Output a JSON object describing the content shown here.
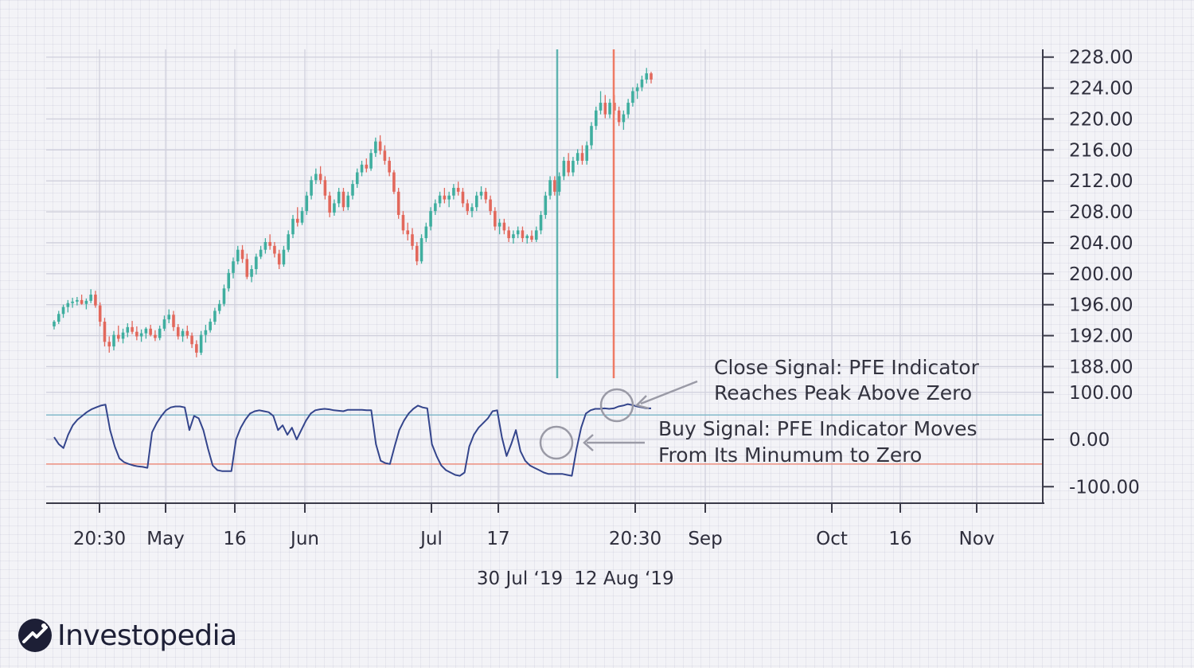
{
  "brand": {
    "name": "Investopedia"
  },
  "colors": {
    "up": "#3fae9f",
    "down": "#e2685c",
    "pfe_line": "#34458c",
    "buy_line": "#5fb3b0",
    "close_line": "#ee7a64",
    "upper_threshold": "#79b4c6",
    "lower_threshold": "#f08a76",
    "annotation": "#9a9aa6"
  },
  "chart_data": {
    "type": "candlestick",
    "price_axis": {
      "ticks": [
        "228.00",
        "224.00",
        "220.00",
        "216.00",
        "212.00",
        "208.00",
        "204.00",
        "200.00",
        "196.00",
        "192.00",
        "188.00"
      ],
      "range": [
        186.5,
        229
      ]
    },
    "indicator_axis": {
      "ticks": [
        "100.00",
        "0.00",
        "-100.00"
      ],
      "range": [
        -135,
        130
      ],
      "upper_threshold": 52,
      "lower_threshold": -52
    },
    "x_axis": {
      "tick_labels": [
        "20:30",
        "May",
        "16",
        "Jun",
        "Jul",
        "17",
        "20:30",
        "Sep",
        "Oct",
        "16",
        "Nov"
      ],
      "secondary_labels": [
        "30 Jul ‘19",
        "12 Aug ‘19"
      ]
    },
    "signals": {
      "buy_date": "30 Jul ‘19",
      "close_date": "12 Aug ‘19"
    },
    "annotations": {
      "close_signal": [
        "Close Signal: PFE Indicator",
        "Reaches Peak Above Zero"
      ],
      "buy_signal": [
        "Buy Signal: PFE Indicator Moves",
        "From Its Minumum to Zero"
      ]
    },
    "candles": [
      [
        193.2,
        194.0,
        192.8,
        193.8
      ],
      [
        193.8,
        195.2,
        193.5,
        194.8
      ],
      [
        194.8,
        196.0,
        194.3,
        195.7
      ],
      [
        195.7,
        196.6,
        195.0,
        196.2
      ],
      [
        196.2,
        196.9,
        195.6,
        196.4
      ],
      [
        196.4,
        197.0,
        195.9,
        196.6
      ],
      [
        196.6,
        197.3,
        196.0,
        196.1
      ],
      [
        196.1,
        196.8,
        195.4,
        196.5
      ],
      [
        196.5,
        198.0,
        196.2,
        197.3
      ],
      [
        197.3,
        197.8,
        195.6,
        195.9
      ],
      [
        195.9,
        196.3,
        193.2,
        193.8
      ],
      [
        193.8,
        194.3,
        190.6,
        191.2
      ],
      [
        191.2,
        191.9,
        189.8,
        190.6
      ],
      [
        190.6,
        192.6,
        190.1,
        192.1
      ],
      [
        192.1,
        193.3,
        191.2,
        191.6
      ],
      [
        191.6,
        192.9,
        191.0,
        192.4
      ],
      [
        192.4,
        193.6,
        191.8,
        193.1
      ],
      [
        193.1,
        193.9,
        192.2,
        192.5
      ],
      [
        192.5,
        193.2,
        191.4,
        191.9
      ],
      [
        191.9,
        192.8,
        191.2,
        192.3
      ],
      [
        192.3,
        193.1,
        191.6,
        192.9
      ],
      [
        192.9,
        193.4,
        191.9,
        192.1
      ],
      [
        192.1,
        192.7,
        191.3,
        191.7
      ],
      [
        191.7,
        193.3,
        191.4,
        192.9
      ],
      [
        192.9,
        194.6,
        192.6,
        194.1
      ],
      [
        194.1,
        195.4,
        193.6,
        194.7
      ],
      [
        194.7,
        195.2,
        192.6,
        193.1
      ],
      [
        193.1,
        193.5,
        191.5,
        191.9
      ],
      [
        191.9,
        192.9,
        191.2,
        192.6
      ],
      [
        192.6,
        193.3,
        191.6,
        192.0
      ],
      [
        192.0,
        192.4,
        190.4,
        190.9
      ],
      [
        190.9,
        191.4,
        189.2,
        189.8
      ],
      [
        189.8,
        192.6,
        189.5,
        192.1
      ],
      [
        192.1,
        193.4,
        191.1,
        192.7
      ],
      [
        192.7,
        194.2,
        192.4,
        193.8
      ],
      [
        193.8,
        195.6,
        193.4,
        195.2
      ],
      [
        195.2,
        196.6,
        194.8,
        196.1
      ],
      [
        196.1,
        198.6,
        195.8,
        198.1
      ],
      [
        198.1,
        200.6,
        197.7,
        200.1
      ],
      [
        200.1,
        202.1,
        199.4,
        201.6
      ],
      [
        201.6,
        203.6,
        201.2,
        203.1
      ],
      [
        203.1,
        203.7,
        201.4,
        201.9
      ],
      [
        201.9,
        202.6,
        199.3,
        199.6
      ],
      [
        199.6,
        201.1,
        198.9,
        200.6
      ],
      [
        200.6,
        202.6,
        199.9,
        202.2
      ],
      [
        202.2,
        203.6,
        201.9,
        203.1
      ],
      [
        203.1,
        204.6,
        202.6,
        204.1
      ],
      [
        204.1,
        205.1,
        203.1,
        203.6
      ],
      [
        203.6,
        204.1,
        202.1,
        202.6
      ],
      [
        202.6,
        203.1,
        200.6,
        201.2
      ],
      [
        201.2,
        203.6,
        200.9,
        203.1
      ],
      [
        203.1,
        205.6,
        202.8,
        205.1
      ],
      [
        205.1,
        207.6,
        204.6,
        207.1
      ],
      [
        207.1,
        208.6,
        206.1,
        206.6
      ],
      [
        206.6,
        208.6,
        206.3,
        208.1
      ],
      [
        208.1,
        210.6,
        207.6,
        210.1
      ],
      [
        210.1,
        212.6,
        209.6,
        212.1
      ],
      [
        212.1,
        213.6,
        211.6,
        212.9
      ],
      [
        212.9,
        213.9,
        211.6,
        212.1
      ],
      [
        212.1,
        212.6,
        209.6,
        210.1
      ],
      [
        210.1,
        210.6,
        207.3,
        207.9
      ],
      [
        207.9,
        209.6,
        207.5,
        209.1
      ],
      [
        209.1,
        211.1,
        208.6,
        210.6
      ],
      [
        210.6,
        211.1,
        208.1,
        208.6
      ],
      [
        208.6,
        210.6,
        208.2,
        210.1
      ],
      [
        210.1,
        212.1,
        209.6,
        211.6
      ],
      [
        211.6,
        213.6,
        211.1,
        213.1
      ],
      [
        213.1,
        214.6,
        212.6,
        214.1
      ],
      [
        214.1,
        214.9,
        213.1,
        213.6
      ],
      [
        213.6,
        216.1,
        213.3,
        215.6
      ],
      [
        215.6,
        217.6,
        215.1,
        217.1
      ],
      [
        217.1,
        217.9,
        215.4,
        215.9
      ],
      [
        215.9,
        216.6,
        214.1,
        214.6
      ],
      [
        214.6,
        215.1,
        212.6,
        213.1
      ],
      [
        213.1,
        213.4,
        210.3,
        210.6
      ],
      [
        210.6,
        211.1,
        207.1,
        207.6
      ],
      [
        207.6,
        208.1,
        205.1,
        205.6
      ],
      [
        205.6,
        206.6,
        204.3,
        205.1
      ],
      [
        205.1,
        205.9,
        203.1,
        203.6
      ],
      [
        203.6,
        204.1,
        201.1,
        201.6
      ],
      [
        201.6,
        205.1,
        201.3,
        204.6
      ],
      [
        204.6,
        206.6,
        204.1,
        206.1
      ],
      [
        206.1,
        208.6,
        205.6,
        208.1
      ],
      [
        208.1,
        209.6,
        207.6,
        209.1
      ],
      [
        209.1,
        210.6,
        208.6,
        210.1
      ],
      [
        210.1,
        211.1,
        209.1,
        209.6
      ],
      [
        209.6,
        210.6,
        208.6,
        210.1
      ],
      [
        210.1,
        211.6,
        209.6,
        211.1
      ],
      [
        211.1,
        211.9,
        210.1,
        210.6
      ],
      [
        210.6,
        211.1,
        208.6,
        209.1
      ],
      [
        209.1,
        209.6,
        207.6,
        208.1
      ],
      [
        208.1,
        209.1,
        207.3,
        208.6
      ],
      [
        208.6,
        210.6,
        208.1,
        210.1
      ],
      [
        210.1,
        211.3,
        209.6,
        210.6
      ],
      [
        210.6,
        211.1,
        209.1,
        209.6
      ],
      [
        209.6,
        210.1,
        207.6,
        208.1
      ],
      [
        208.1,
        208.6,
        205.6,
        206.1
      ],
      [
        206.1,
        207.1,
        205.1,
        206.6
      ],
      [
        206.6,
        207.1,
        205.1,
        205.6
      ],
      [
        205.6,
        206.1,
        204.1,
        204.6
      ],
      [
        204.6,
        205.6,
        203.9,
        205.1
      ],
      [
        205.1,
        206.1,
        204.6,
        205.6
      ],
      [
        205.6,
        206.1,
        204.1,
        204.6
      ],
      [
        204.6,
        205.1,
        203.9,
        204.9
      ],
      [
        204.9,
        205.6,
        204.1,
        204.4
      ],
      [
        204.4,
        206.1,
        204.1,
        205.6
      ],
      [
        205.6,
        208.1,
        205.1,
        207.6
      ],
      [
        207.6,
        210.6,
        207.1,
        210.1
      ],
      [
        210.1,
        212.6,
        209.6,
        212.1
      ],
      [
        212.1,
        212.6,
        210.1,
        210.6
      ],
      [
        210.6,
        213.1,
        210.1,
        212.6
      ],
      [
        212.6,
        215.1,
        212.1,
        214.6
      ],
      [
        214.6,
        215.6,
        212.6,
        213.1
      ],
      [
        213.1,
        215.1,
        212.6,
        214.6
      ],
      [
        214.6,
        216.1,
        214.1,
        215.6
      ],
      [
        215.6,
        216.6,
        214.1,
        214.6
      ],
      [
        214.6,
        217.1,
        214.1,
        216.6
      ],
      [
        216.6,
        219.6,
        216.1,
        219.1
      ],
      [
        219.1,
        221.6,
        218.6,
        221.1
      ],
      [
        221.1,
        223.6,
        220.6,
        222.1
      ],
      [
        222.1,
        223.1,
        220.1,
        220.6
      ],
      [
        220.6,
        222.6,
        220.1,
        222.1
      ],
      [
        222.1,
        223.1,
        220.6,
        221.1
      ],
      [
        221.1,
        221.6,
        219.1,
        219.6
      ],
      [
        219.6,
        221.1,
        218.6,
        220.6
      ],
      [
        220.6,
        222.6,
        220.1,
        222.1
      ],
      [
        222.1,
        224.1,
        221.6,
        223.6
      ],
      [
        223.6,
        224.6,
        222.6,
        224.1
      ],
      [
        224.1,
        225.6,
        223.6,
        225.1
      ],
      [
        225.1,
        226.6,
        224.6,
        225.9
      ],
      [
        225.9,
        226.1,
        224.6,
        225.1
      ]
    ],
    "pfe": [
      5,
      -10,
      -18,
      10,
      30,
      42,
      50,
      58,
      64,
      68,
      72,
      74,
      20,
      -15,
      -40,
      -48,
      -52,
      -55,
      -57,
      -58,
      -60,
      15,
      35,
      50,
      62,
      68,
      70,
      70,
      68,
      20,
      50,
      45,
      20,
      -20,
      -55,
      -65,
      -67,
      -67,
      -67,
      0,
      25,
      42,
      55,
      60,
      62,
      60,
      58,
      50,
      20,
      30,
      10,
      25,
      0,
      20,
      40,
      55,
      62,
      64,
      65,
      64,
      62,
      61,
      60,
      63,
      63,
      63,
      63,
      62,
      62,
      -10,
      -45,
      -50,
      -52,
      -15,
      20,
      40,
      55,
      65,
      72,
      68,
      66,
      -10,
      -35,
      -55,
      -65,
      -70,
      -75,
      -77,
      -70,
      -15,
      10,
      25,
      35,
      45,
      60,
      62,
      5,
      -35,
      -10,
      20,
      -25,
      -45,
      -55,
      -60,
      -65,
      -70,
      -73,
      -73,
      -73,
      -73,
      -75,
      -77,
      -20,
      25,
      55,
      62,
      65,
      65,
      66,
      65,
      66,
      70,
      72,
      75,
      73,
      70,
      68,
      66,
      66
    ]
  }
}
